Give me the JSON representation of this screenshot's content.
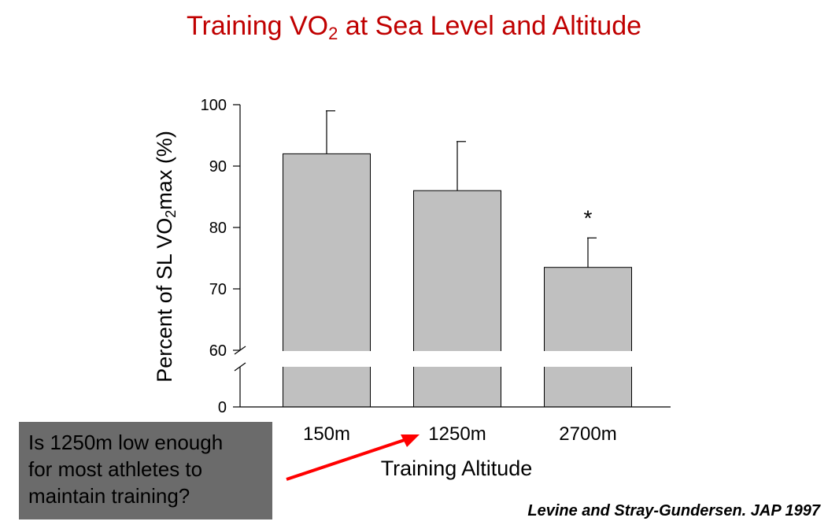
{
  "title": {
    "main": "Training VO",
    "sub": "2",
    "rest": " at Sea Level and Altitude"
  },
  "callout": {
    "text": "Is 1250m low enough\nfor most athletes to\nmaintain training?"
  },
  "citation": "Levine and Stray-Gundersen. JAP 1997",
  "colors": {
    "title": "#c00000",
    "bar": "#c0c0c0",
    "arrow": "#ff0000",
    "callout_bg": "#6b6b6b"
  },
  "chart_data": {
    "type": "bar",
    "title": "Training VO2 at Sea Level and Altitude",
    "xlabel": "Training Altitude",
    "ylabel": {
      "pre": "Percent of SL VO",
      "sub": "2",
      "post": "max (%)"
    },
    "categories": [
      "150m",
      "1250m",
      "2700m"
    ],
    "values": [
      92,
      86,
      73.5
    ],
    "errors": [
      7,
      8,
      4.8
    ],
    "annotations": [
      "",
      "",
      "*"
    ],
    "yticks": [
      0,
      60,
      70,
      80,
      90,
      100
    ],
    "ylim": [
      0,
      100
    ],
    "axis_break": [
      0,
      60
    ],
    "grid": false
  }
}
